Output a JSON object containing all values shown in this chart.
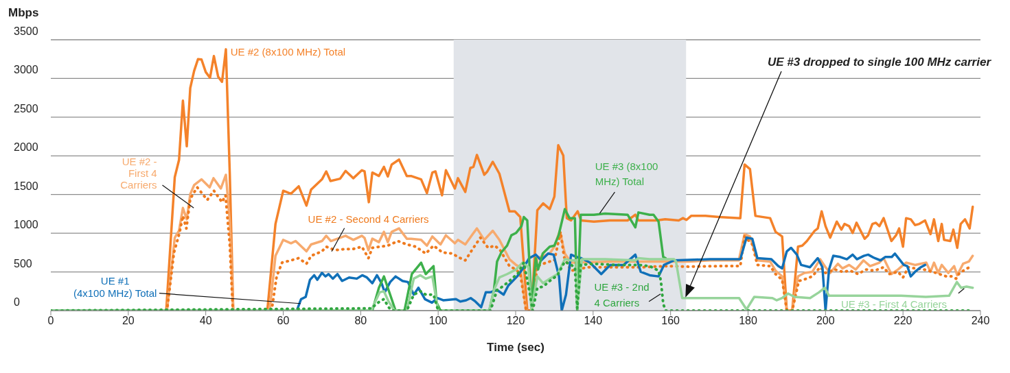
{
  "chart_data": {
    "type": "line",
    "ylabel": "Mbps",
    "xlabel": "Time (sec)",
    "xlim": [
      0,
      240
    ],
    "xticks": [
      0,
      20,
      40,
      60,
      80,
      100,
      120,
      140,
      160,
      180,
      200,
      220,
      240
    ],
    "ylim": [
      0,
      3500
    ],
    "yticks": [
      0,
      500,
      1000,
      1500,
      2000,
      2500,
      3000,
      3500
    ],
    "grid": "y",
    "bands": [
      {
        "axis": "x",
        "from": 104,
        "to": 164,
        "color": "#e1e4e9"
      }
    ],
    "annotations": [
      "UE #3 dropped to single 100 MHz carrier"
    ],
    "series": [
      {
        "name": "UE #2 (8x100 MHz) Total",
        "color": "#f4822a",
        "x": [
          0,
          29.8,
          32,
          33.1,
          34.1,
          35.1,
          36,
          37,
          38,
          38.9,
          40,
          41.1,
          42.1,
          43.2,
          44.2,
          45.2,
          46.2,
          47.1,
          55.9,
          58,
          60,
          62,
          64,
          66,
          67.2,
          70,
          71.1,
          72.2,
          74.7,
          76.1,
          78.1,
          80.3,
          81,
          82.1,
          83,
          84.7,
          86,
          87,
          88,
          89.9,
          91.9,
          93,
          95.6,
          97.1,
          98.5,
          99.3,
          101,
          102,
          104.3,
          105.1,
          107,
          108.3,
          109.1,
          110,
          111.9,
          112.7,
          114.1,
          115.8,
          118.4,
          119.8,
          121.2,
          123,
          124.1,
          125.6,
          127.1,
          128.8,
          130,
          131,
          132.3,
          133.2,
          134.3,
          136,
          136.9,
          140.2,
          144.3,
          148.9,
          150.9,
          151.7,
          154.6,
          156.3,
          158.6,
          162.1,
          163.2,
          164.1,
          165.3,
          169,
          172.5,
          178,
          179.1,
          180.5,
          181.9,
          185.7,
          187.1,
          188.8,
          190,
          191.4,
          192.9,
          194,
          195.2,
          197.2,
          198,
          199,
          200,
          201.2,
          202.9,
          204.1,
          204.9,
          206.1,
          207,
          208,
          210.1,
          211,
          212.1,
          213,
          213.9,
          215,
          217,
          218.2,
          219,
          220,
          220.8,
          222,
          223.1,
          224.2,
          225.7,
          227.1,
          228,
          229.1,
          230,
          230.6,
          232.2,
          233,
          234,
          234.9,
          236,
          237.2,
          238
        ],
        "values": [
          0,
          0,
          1725,
          1947,
          2713,
          2124,
          2876,
          3098,
          3250,
          3245,
          3082,
          3009,
          3289,
          3023,
          2956,
          3377,
          1770,
          0,
          0,
          1120,
          1549,
          1510,
          1607,
          1357,
          1563,
          1696,
          1799,
          1675,
          1705,
          1805,
          1711,
          1814,
          1799,
          1401,
          1784,
          1740,
          1858,
          1733,
          1888,
          1952,
          1740,
          1740,
          1696,
          1519,
          1784,
          1799,
          1490,
          1814,
          1578,
          1711,
          1534,
          1843,
          1858,
          2012,
          1755,
          1799,
          1923,
          1770,
          1283,
          1283,
          1209,
          0,
          0,
          1297,
          1386,
          1312,
          1475,
          2138,
          2005,
          1195,
          1165,
          1283,
          1165,
          1150,
          1165,
          1165,
          1239,
          1165,
          1165,
          1165,
          1180,
          1165,
          1195,
          1172,
          1224,
          1224,
          1209,
          1195,
          1888,
          1829,
          1224,
          1195,
          1018,
          958,
          0,
          0,
          826,
          840,
          899,
          1032,
          1062,
          1283,
          1091,
          943,
          1150,
          1047,
          1120,
          1091,
          1003,
          1135,
          929,
          973,
          1120,
          1135,
          1091,
          1195,
          899,
          973,
          1062,
          826,
          1195,
          1180,
          1106,
          1120,
          1165,
          988,
          1180,
          899,
          1120,
          914,
          899,
          1047,
          811,
          1120,
          1180,
          1062,
          1342
        ]
      },
      {
        "name": "UE #2 - First 4 Carriers",
        "color": "#f7aa6e",
        "x": [
          0,
          30,
          32,
          33.1,
          34.1,
          35.1,
          36,
          37,
          38.9,
          41,
          42,
          43.9,
          45.2,
          46.2,
          47.1,
          56.5,
          58,
          60,
          62,
          63.2,
          66,
          67.2,
          70,
          71.1,
          72.3,
          76.1,
          78.1,
          80.3,
          81,
          82,
          83,
          84.7,
          86,
          87,
          88,
          89.9,
          91.9,
          93,
          95.6,
          97.1,
          98.5,
          100.6,
          102,
          104.3,
          105.1,
          107,
          108.9,
          110,
          111.9,
          114.1,
          115.8,
          118.4,
          120.1,
          121.2,
          122.7,
          124.1,
          125.6,
          127.1,
          128.8,
          130,
          131.4,
          132.7,
          134.3,
          135.7,
          145,
          152.9,
          158.6,
          164.7,
          170.2,
          177.6,
          179.1,
          180.5,
          182.4,
          185.7,
          187.1,
          188.8,
          190,
          191.4,
          192.9,
          194.6,
          196.6,
          198.6,
          200,
          201.2,
          203.2,
          204.4,
          206.1,
          207.8,
          209.8,
          211.5,
          213.9,
          215,
          217,
          218.7,
          220.8,
          223.1,
          226,
          227.1,
          228,
          229.1,
          230,
          231.7,
          233.2,
          234,
          235.5,
          237,
          238
        ],
        "values": [
          0,
          0,
          943,
          1032,
          1327,
          1180,
          1505,
          1622,
          1696,
          1593,
          1711,
          1578,
          1755,
          1150,
          0,
          0,
          708,
          914,
          870,
          899,
          766,
          855,
          899,
          967,
          899,
          967,
          914,
          967,
          938,
          781,
          929,
          885,
          1018,
          885,
          1018,
          1062,
          929,
          929,
          914,
          840,
          958,
          855,
          973,
          870,
          914,
          855,
          988,
          1062,
          914,
          1032,
          914,
          664,
          590,
          561,
          0,
          0,
          678,
          708,
          737,
          826,
          1032,
          737,
          620,
          620,
          634,
          634,
          634,
          634,
          649,
          649,
          988,
          958,
          649,
          634,
          516,
          443,
          0,
          0,
          443,
          487,
          501,
          664,
          561,
          487,
          605,
          546,
          590,
          531,
          649,
          575,
          620,
          678,
          472,
          531,
          620,
          590,
          620,
          501,
          620,
          487,
          590,
          487,
          575,
          457,
          605,
          634,
          708
        ]
      },
      {
        "name": "UE #2 - Second 4 Carriers",
        "color": "#ef7a1e",
        "line_style": "dotted",
        "x": [
          0,
          30,
          31.8,
          33.2,
          34.1,
          35,
          36,
          37.8,
          40.4,
          42.1,
          44.2,
          45.1,
          46.2,
          47,
          57,
          58.3,
          59.7,
          62,
          64,
          66,
          67.2,
          70,
          71.1,
          73.4,
          76,
          78,
          80.3,
          82,
          83,
          85,
          87,
          89.6,
          91.9,
          94.2,
          96.8,
          98.8,
          101.1,
          103.7,
          105.1,
          107,
          108.9,
          110.9,
          112.9,
          114.6,
          116,
          118.4,
          120.1,
          121.2,
          122.7,
          124.1,
          125.6,
          127.1,
          128.8,
          130,
          131.6,
          132.5,
          134.3,
          136,
          138.5,
          143.1,
          152.9,
          158.6,
          164.7,
          172,
          178,
          179.1,
          181.1,
          182.4,
          185.7,
          187.1,
          188.8,
          190,
          191.4,
          193.1,
          194.3,
          196.6,
          198.6,
          200,
          202.4,
          204.4,
          206.4,
          208.4,
          210.4,
          212.7,
          215,
          216.4,
          218.7,
          220,
          221.4,
          223.1,
          225.4,
          227.7,
          229.4,
          231.1,
          232.5,
          233.7,
          234.6,
          236.6,
          237.7
        ],
        "values": [
          0,
          0,
          752,
          1000,
          1224,
          1062,
          1445,
          1593,
          1430,
          1549,
          1401,
          1490,
          855,
          0,
          0,
          442,
          620,
          649,
          678,
          605,
          708,
          766,
          826,
          781,
          796,
          796,
          826,
          678,
          811,
          826,
          840,
          899,
          855,
          826,
          737,
          840,
          752,
          737,
          693,
          649,
          796,
          943,
          811,
          840,
          781,
          575,
          531,
          472,
          0,
          0,
          575,
          605,
          634,
          649,
          1018,
          693,
          516,
          531,
          561,
          561,
          561,
          575,
          568,
          575,
          575,
          958,
          855,
          590,
          575,
          472,
          398,
          0,
          0,
          383,
          398,
          443,
          561,
          487,
          531,
          501,
          516,
          472,
          531,
          516,
          561,
          472,
          501,
          428,
          561,
          546,
          531,
          501,
          472,
          443,
          443,
          413,
          487,
          546,
          575
        ]
      },
      {
        "name": "UE #1 (4x100 MHz) Total",
        "color": "#1070b8",
        "x": [
          0,
          63.5,
          64.6,
          65.8,
          66.9,
          68,
          68.8,
          70,
          70.9,
          71.7,
          72.8,
          74,
          75.2,
          77,
          79,
          80.4,
          81.6,
          83,
          84.2,
          85.4,
          86.2,
          87.6,
          89,
          90.8,
          92.2,
          93.7,
          94.9,
          96.6,
          98.4,
          99.8,
          101.3,
          104.6,
          105.7,
          107.2,
          108.4,
          109.6,
          111.1,
          112.3,
          113.4,
          115.2,
          116.9,
          118.1,
          120.4,
          122.1,
          123.5,
          125.2,
          126.6,
          128.4,
          129.8,
          131.2,
          131.9,
          133,
          134.3,
          135.7,
          136.9,
          139.2,
          142.1,
          144.4,
          147.9,
          150.9,
          152.3,
          154.6,
          156.9,
          158.3,
          160.9,
          170.2,
          178,
          179.6,
          181.1,
          182.4,
          186,
          187.8,
          188.8,
          190,
          191.1,
          192.6,
          193.7,
          196,
          198,
          199.2,
          200,
          200.9,
          202,
          203.8,
          205.5,
          207,
          208.1,
          209.9,
          211,
          212.7,
          214.2,
          215.4,
          217.1,
          217.9,
          220.2,
          221.1,
          222,
          223.1,
          224.6,
          225.7
        ],
        "values": [
          0,
          0,
          147,
          177,
          398,
          457,
          398,
          487,
          442,
          472,
          413,
          472,
          383,
          428,
          413,
          457,
          428,
          354,
          457,
          354,
          236,
          369,
          442,
          383,
          369,
          206,
          295,
          147,
          103,
          162,
          133,
          148,
          118,
          133,
          162,
          118,
          44,
          236,
          236,
          266,
          206,
          324,
          442,
          560,
          678,
          723,
          649,
          737,
          723,
          442,
          0,
          206,
          723,
          693,
          678,
          620,
          472,
          590,
          590,
          723,
          501,
          457,
          442,
          590,
          649,
          664,
          664,
          943,
          929,
          678,
          664,
          575,
          546,
          766,
          811,
          723,
          590,
          561,
          678,
          561,
          0,
          531,
          708,
          693,
          664,
          723,
          664,
          708,
          723,
          678,
          649,
          693,
          693,
          737,
          590,
          575,
          442,
          501,
          561,
          590
        ]
      },
      {
        "name": "UE #3 (8x100 MHz) Total",
        "color": "#3db04b",
        "x": [
          0,
          83,
          84.7,
          86,
          87.8,
          89,
          91.3,
          93.2,
          95.6,
          96.8,
          98.8,
          99.6,
          100.6,
          113.2,
          114.4,
          115.2,
          116.3,
          117.8,
          118.9,
          120.1,
          121.5,
          122.1,
          123,
          124.1,
          125.2,
          125.8,
          127,
          128.8,
          130,
          131.1,
          132.7,
          133.9,
          135.3,
          135.9,
          136.8,
          140.2,
          143.1,
          148.9,
          150.9,
          151.7,
          154.6,
          155.6,
          156.9,
          158.1,
          158.7
        ],
        "values": [
          0,
          0,
          295,
          442,
          177,
          0,
          0,
          472,
          619,
          472,
          575,
          103,
          0,
          0,
          266,
          634,
          752,
          840,
          973,
          1003,
          1091,
          1209,
          1165,
          59,
          678,
          531,
          737,
          826,
          840,
          973,
          1312,
          1195,
          1195,
          0,
          1239,
          1239,
          1253,
          1239,
          1076,
          1268,
          1239,
          1239,
          1150,
          693,
          678
        ]
      },
      {
        "name": "UE #3 - First 4 Carriers",
        "color": "#97d49b",
        "x": [
          0,
          82.7,
          84.9,
          86,
          87.2,
          88.7,
          91.9,
          93.7,
          95.4,
          96.8,
          98.5,
          100,
          113.2,
          114.4,
          115.8,
          117.8,
          120.1,
          121.8,
          123.3,
          124.1,
          125.6,
          127.1,
          128.8,
          130.8,
          132.7,
          134.3,
          135.7,
          135.9,
          137.1,
          143.1,
          150.9,
          151.7,
          154.6,
          160.9,
          161.4,
          163,
          177.7,
          179.6,
          181.6,
          186.3,
          187.4,
          188.8,
          190.3,
          192,
          196,
          198.3,
          199.8,
          200.9,
          205.8,
          211.5,
          219.5,
          225.9,
          231.9,
          233.9,
          235,
          236.4,
          238
        ],
        "values": [
          0,
          0,
          236,
          251,
          118,
          0,
          0,
          413,
          457,
          413,
          442,
          0,
          0,
          266,
          428,
          472,
          531,
          620,
          561,
          0,
          442,
          354,
          413,
          472,
          664,
          649,
          649,
          29,
          664,
          664,
          649,
          678,
          664,
          664,
          634,
          162,
          162,
          15,
          177,
          162,
          133,
          162,
          221,
          177,
          162,
          236,
          295,
          192,
          192,
          192,
          192,
          177,
          192,
          369,
          295,
          310,
          295
        ]
      },
      {
        "name": "UE #3 - 2nd 4 Carriers",
        "color": "#2fa63f",
        "line_style": "dotted",
        "x": [
          0,
          82.7,
          84.9,
          86,
          87.2,
          88,
          91.9,
          93.7,
          95.4,
          96.8,
          98.8,
          100,
          113.5,
          115.2,
          116.6,
          118.4,
          120.7,
          122.1,
          123.5,
          124.4,
          125.6,
          127.1,
          128.8,
          130.8,
          132.7,
          134.3,
          135.3,
          135.9,
          136.8,
          140.2,
          145.9,
          151.7,
          154.6,
          156.9,
          157.5,
          158.1,
          158.7,
          238
        ],
        "values": [
          0,
          29,
          118,
          148,
          44,
          0,
          0,
          206,
          251,
          206,
          206,
          0,
          0,
          266,
          310,
          383,
          487,
          620,
          266,
          0,
          295,
          310,
          383,
          457,
          634,
          590,
          561,
          29,
          590,
          605,
          590,
          590,
          575,
          516,
          383,
          88,
          0,
          0
        ]
      }
    ]
  }
}
